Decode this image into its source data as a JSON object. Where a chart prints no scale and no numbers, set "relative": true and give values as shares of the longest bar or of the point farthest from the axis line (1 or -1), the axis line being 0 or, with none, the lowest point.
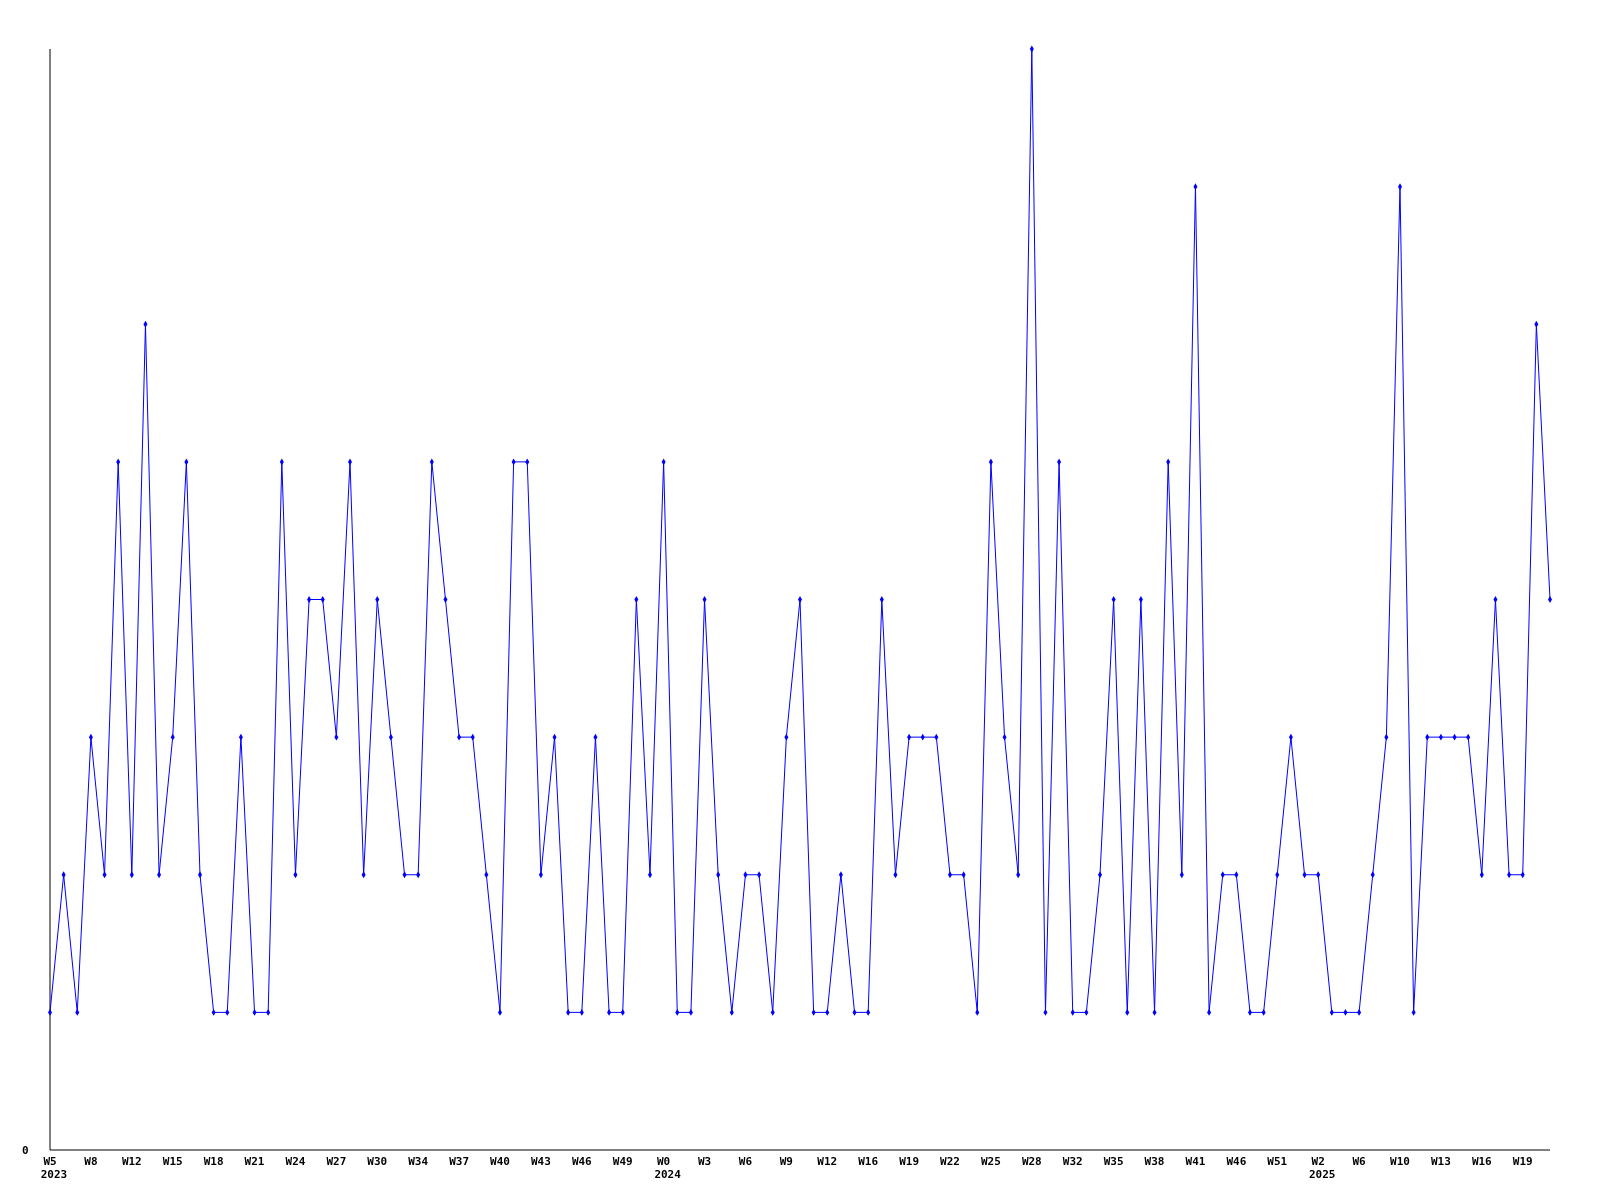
{
  "chart_data": {
    "type": "line",
    "relative": true,
    "marker": "diamond",
    "categories": [
      "W5\n2023",
      null,
      null,
      "W8",
      null,
      null,
      "W12",
      null,
      null,
      "W15",
      null,
      null,
      "W18",
      null,
      null,
      "W21",
      null,
      null,
      "W24",
      null,
      null,
      "W27",
      null,
      null,
      "W30",
      null,
      null,
      "W34",
      null,
      null,
      "W37",
      null,
      null,
      "W40",
      null,
      null,
      "W43",
      null,
      null,
      "W46",
      null,
      null,
      "W49",
      null,
      null,
      "W0\n2024",
      null,
      null,
      "W3",
      null,
      null,
      "W6",
      null,
      null,
      "W9",
      null,
      null,
      "W12",
      null,
      null,
      "W16",
      null,
      null,
      "W19",
      null,
      null,
      "W22",
      null,
      null,
      "W25",
      null,
      null,
      "W28",
      null,
      null,
      "W32",
      null,
      null,
      "W35",
      null,
      null,
      "W38",
      null,
      null,
      "W41",
      null,
      null,
      "W46",
      null,
      null,
      "W51",
      null,
      null,
      "W2\n2025",
      null,
      null,
      "W6",
      null,
      null,
      "W10",
      null,
      null,
      "W13",
      null,
      null,
      "W16",
      null,
      null,
      "W19",
      null,
      null
    ],
    "series": [
      {
        "color": "#0000ff",
        "values": [
          0.125,
          0.25,
          0.125,
          0.375,
          0.25,
          0.625,
          0.25,
          0.75,
          0.25,
          0.375,
          0.625,
          0.25,
          0.125,
          0.125,
          0.375,
          0.125,
          0.125,
          0.625,
          0.25,
          0.5,
          0.5,
          0.375,
          0.625,
          0.25,
          0.5,
          0.375,
          0.25,
          0.25,
          0.625,
          0.5,
          0.375,
          0.375,
          0.25,
          0.125,
          0.625,
          0.625,
          0.25,
          0.375,
          0.125,
          0.125,
          0.375,
          0.125,
          0.125,
          0.5,
          0.25,
          0.625,
          0.125,
          0.125,
          0.5,
          0.25,
          0.125,
          0.25,
          0.25,
          0.125,
          0.375,
          0.5,
          0.125,
          0.125,
          0.25,
          0.125,
          0.125,
          0.5,
          0.25,
          0.375,
          0.375,
          0.375,
          0.25,
          0.25,
          0.125,
          0.625,
          0.375,
          0.25,
          1,
          0.125,
          0.625,
          0.125,
          0.125,
          0.25,
          0.5,
          0.125,
          0.5,
          0.125,
          0.625,
          0.25,
          0.875,
          0.125,
          0.25,
          0.25,
          0.125,
          0.125,
          0.25,
          0.375,
          0.25,
          0.25,
          0.125,
          0.125,
          0.125,
          0.25,
          0.375,
          0.875,
          0.125,
          0.375,
          0.375,
          0.375,
          0.375,
          0.25,
          0.5,
          0.25,
          0.25,
          0.75,
          0.5
        ]
      }
    ],
    "annotations": [
      "0"
    ]
  }
}
